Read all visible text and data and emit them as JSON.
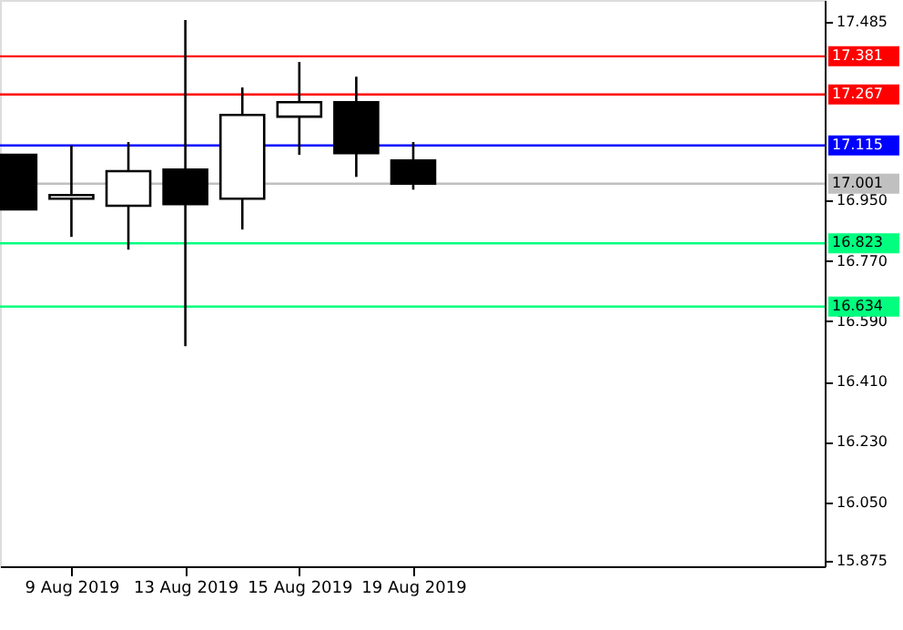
{
  "chart_data": {
    "type": "candlestick",
    "categories": [
      null,
      "9 Aug 2019",
      null,
      "13 Aug 2019",
      null,
      "15 Aug 2019",
      null,
      "19 Aug 2019",
      null,
      null,
      null,
      null,
      null,
      null
    ],
    "ohlc": [
      [
        17.087,
        17.087,
        16.924,
        16.924
      ],
      [
        16.956,
        17.114,
        16.842,
        16.967
      ],
      [
        16.935,
        17.125,
        16.804,
        17.038
      ],
      [
        17.043,
        17.489,
        16.516,
        16.94
      ],
      [
        16.956,
        17.288,
        16.864,
        17.206
      ],
      [
        17.201,
        17.364,
        17.087,
        17.244
      ],
      [
        17.244,
        17.32,
        17.021,
        17.092
      ],
      [
        17.07,
        17.125,
        16.983,
        17.001
      ],
      null,
      null,
      null,
      null,
      null,
      null
    ],
    "colors": [
      "#000000",
      "#ffffff",
      "#ffffff",
      "#000000",
      "#ffffff",
      "#ffffff",
      "#000000",
      "#000000",
      null,
      null,
      null,
      null,
      null,
      null
    ],
    "ylim": [
      15.859,
      17.549
    ],
    "yticks": [
      {
        "value": 17.485,
        "label": "17.485"
      },
      {
        "value": 16.95,
        "label": "16.950"
      },
      {
        "value": 16.77,
        "label": "16.770"
      },
      {
        "value": 16.59,
        "label": "16.590"
      },
      {
        "value": 16.41,
        "label": "16.410"
      },
      {
        "value": 16.23,
        "label": "16.230"
      },
      {
        "value": 16.05,
        "label": "16.050"
      },
      {
        "value": 15.875,
        "label": "15.875"
      }
    ],
    "ref_lines": [
      {
        "axis": "y",
        "value": 17.381,
        "label": "17.381",
        "color": "#ff0000"
      },
      {
        "axis": "y",
        "value": 17.267,
        "label": "17.267",
        "color": "#ff0000"
      },
      {
        "axis": "y",
        "value": 17.115,
        "label": "17.115",
        "color": "#0000ff"
      },
      {
        "axis": "y",
        "value": 17.001,
        "label": "17.001",
        "color": "#c0c0c0"
      },
      {
        "axis": "y",
        "value": 16.823,
        "label": "16.823",
        "color": "#00ff7f"
      },
      {
        "axis": "y",
        "value": 16.634,
        "label": "16.634",
        "color": "#00ff7f"
      }
    ],
    "grid": false
  }
}
